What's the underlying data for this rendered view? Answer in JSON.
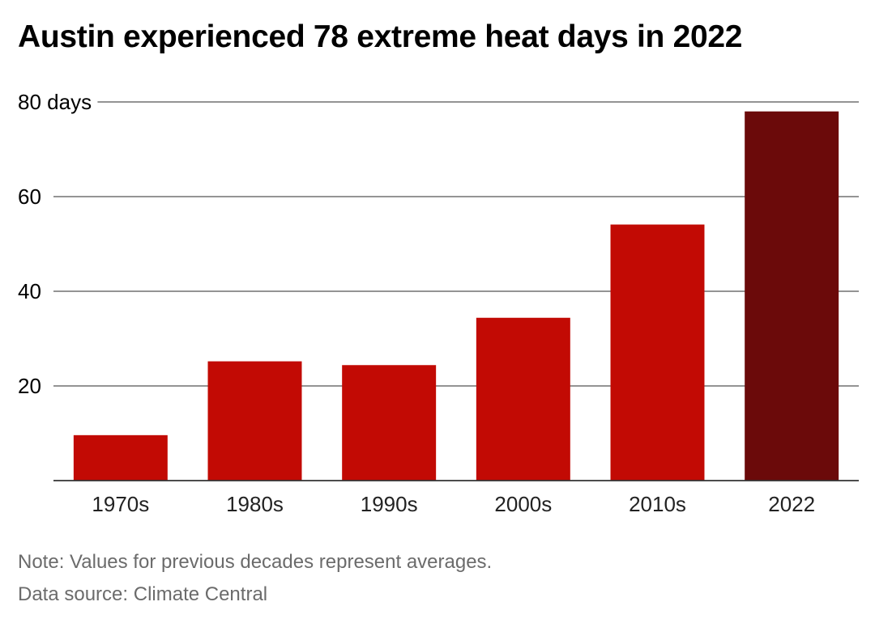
{
  "chart_data": {
    "type": "bar",
    "title": "Austin experienced 78 extreme heat days in 2022",
    "categories": [
      "1970s",
      "1980s",
      "1990s",
      "2000s",
      "2010s",
      "2022"
    ],
    "values": [
      9.6,
      25.2,
      24.4,
      34.4,
      54.1,
      78
    ],
    "y_ticks": [
      20,
      40,
      60,
      80
    ],
    "y_tick_labels": [
      "20",
      "40",
      "60",
      "80 days"
    ],
    "ylim": [
      0,
      80
    ],
    "xlabel": "",
    "ylabel": "",
    "grid": true,
    "colors": {
      "default_bar": "#c20a04",
      "highlight_bar": "#6b0a0a",
      "gridline": "#555555",
      "axis": "#333333"
    },
    "highlight_category": "2022"
  },
  "footer": {
    "note": "Note: Values for previous decades represent averages.",
    "source": "Data source: Climate Central"
  }
}
